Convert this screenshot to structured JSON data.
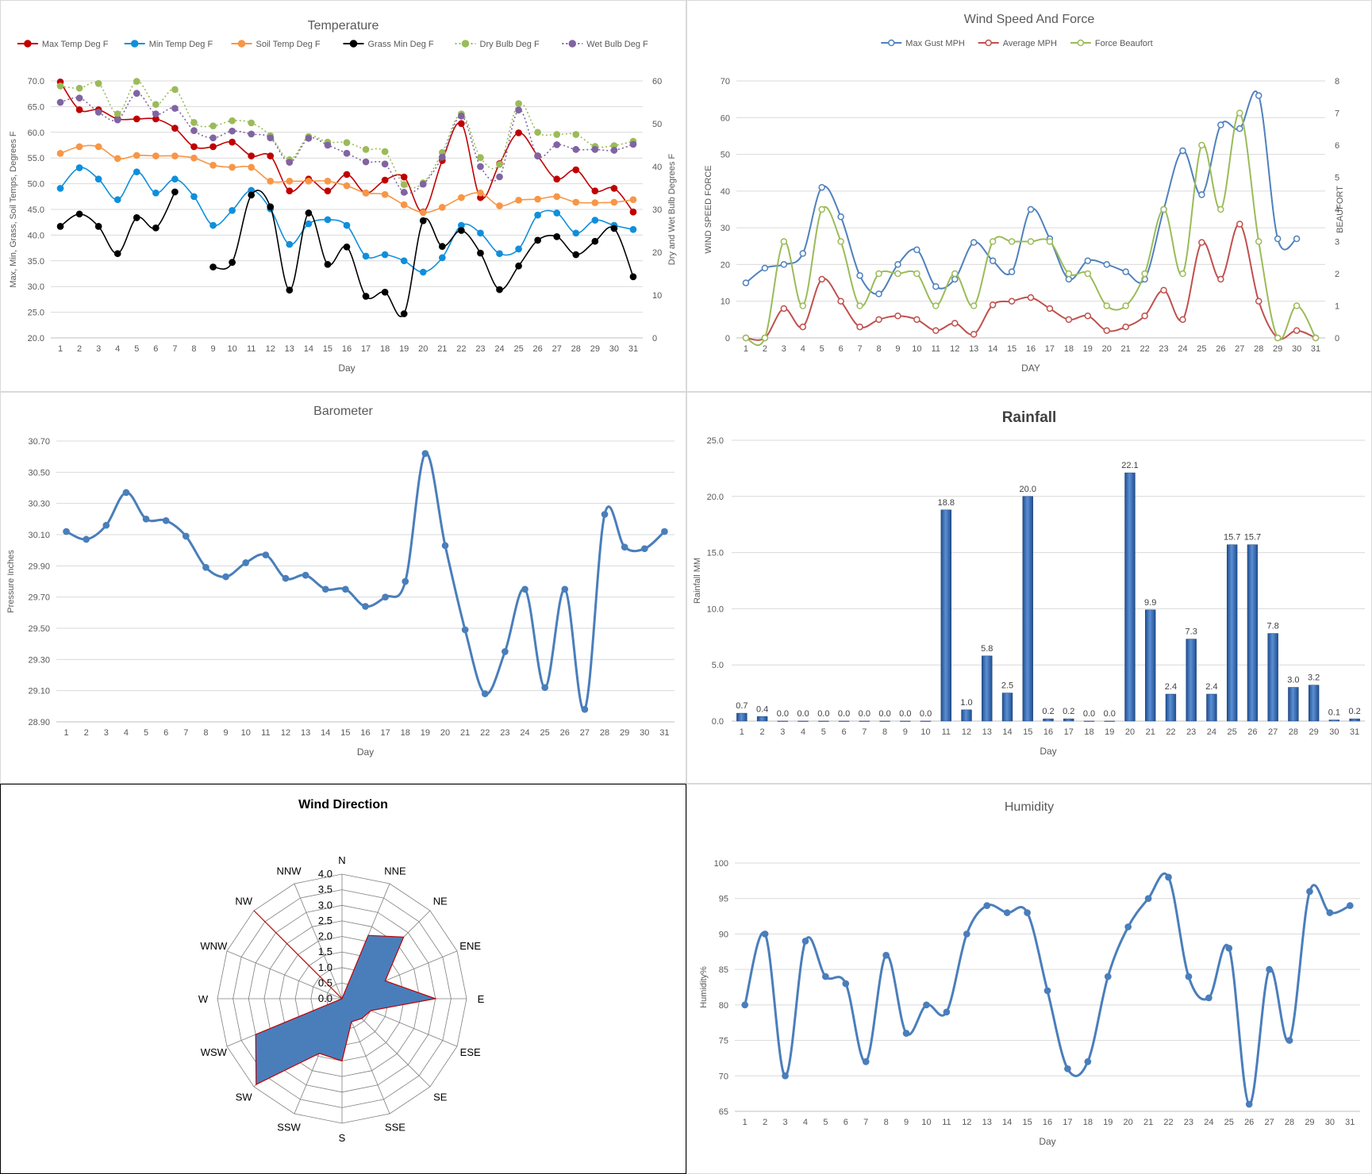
{
  "temperature": {
    "title": "Temperature",
    "xlabel": "Day",
    "ylabel_left": "Max, Min, Grass, Soil Temps, Degrees F",
    "ylabel_right": "Dry and Wet Bulb Degrees F",
    "legend": [
      {
        "name": "Max Temp Deg F",
        "color": "#c00000",
        "dash": false
      },
      {
        "name": "Min Temp Deg F",
        "color": "#0f8fdb",
        "dash": false
      },
      {
        "name": "Soil Temp Deg F",
        "color": "#f79646",
        "dash": false
      },
      {
        "name": "Grass Min Deg F",
        "color": "#000000",
        "dash": false
      },
      {
        "name": "Dry Bulb Deg F",
        "color": "#9bbb59",
        "dash": true
      },
      {
        "name": "Wet Bulb Deg F",
        "color": "#8064a2",
        "dash": true
      }
    ]
  },
  "wind": {
    "title": "Wind Speed And Force",
    "xlabel": "DAY",
    "ylabel_left": "WIND SPEED FORCE",
    "ylabel_right": "BEAUFORT",
    "legend": [
      {
        "name": "Max Gust MPH",
        "color": "#4f81bd"
      },
      {
        "name": "Average MPH",
        "color": "#c0504d"
      },
      {
        "name": "Force Beaufort",
        "color": "#9bbb59"
      }
    ]
  },
  "barometer": {
    "title": "Barometer",
    "xlabel": "Day",
    "ylabel": "Pressure Inches"
  },
  "rainfall": {
    "title": "Rainfall",
    "xlabel": "Day",
    "ylabel": "Rainfall MM"
  },
  "direction": {
    "title": "Wind Direction"
  },
  "humidity": {
    "title": "Humidity",
    "xlabel": "Day",
    "ylabel": "Humidity%"
  },
  "chart_data": [
    {
      "type": "line",
      "title": "Temperature",
      "xlabel": "Day",
      "ylabel": "Max, Min, Grass, Soil Temps, Degrees F",
      "y2label": "Dry and Wet Bulb Degrees F",
      "x": [
        1,
        2,
        3,
        4,
        5,
        6,
        7,
        8,
        9,
        10,
        11,
        12,
        13,
        14,
        15,
        16,
        17,
        18,
        19,
        20,
        21,
        22,
        23,
        24,
        25,
        26,
        27,
        28,
        29,
        30,
        31
      ],
      "ylim": [
        20,
        70
      ],
      "y2lim": [
        0,
        60
      ],
      "yticks": [
        "20.0",
        "25.0",
        "30.0",
        "35.0",
        "40.0",
        "45.0",
        "50.0",
        "55.0",
        "60.0",
        "65.0",
        "70.0"
      ],
      "y2ticks": [
        "0",
        "10",
        "20",
        "30",
        "40",
        "50",
        "60"
      ],
      "legend": "top",
      "series": [
        {
          "name": "Max Temp Deg F",
          "axis": "left",
          "values": [
            69.8,
            64.4,
            64.4,
            62.6,
            62.6,
            62.6,
            60.8,
            57.2,
            57.2,
            58.1,
            55.4,
            55.4,
            48.6,
            50.9,
            48.6,
            51.8,
            48.2,
            50.7,
            51.3,
            44.5,
            54.5,
            61.7,
            47.3,
            53.9,
            59.9,
            55.4,
            50.9,
            52.7,
            48.6,
            49.1,
            44.5
          ]
        },
        {
          "name": "Min Temp Deg F",
          "axis": "left",
          "values": [
            49.1,
            53.1,
            50.9,
            46.9,
            52.3,
            48.2,
            50.9,
            47.5,
            41.9,
            44.8,
            48.7,
            45.1,
            38.2,
            42.2,
            43.0,
            41.9,
            35.9,
            36.2,
            35.0,
            32.8,
            35.6,
            41.9,
            40.4,
            36.4,
            37.3,
            43.9,
            44.3,
            40.4,
            42.9,
            41.9,
            41.1
          ]
        },
        {
          "name": "Soil Temp Deg F",
          "axis": "left",
          "values": [
            55.9,
            57.2,
            57.2,
            54.9,
            55.5,
            55.4,
            55.4,
            55.0,
            53.6,
            53.2,
            53.2,
            50.5,
            50.5,
            50.5,
            50.5,
            49.6,
            48.2,
            47.9,
            45.9,
            44.4,
            45.4,
            47.3,
            48.2,
            45.7,
            46.8,
            47.0,
            47.5,
            46.4,
            46.3,
            46.4,
            46.9
          ]
        },
        {
          "name": "Grass Min Deg F",
          "axis": "left",
          "values": [
            41.7,
            44.1,
            41.7,
            36.4,
            43.4,
            41.4,
            48.4,
            null,
            33.8,
            34.7,
            47.8,
            45.5,
            29.3,
            44.3,
            34.3,
            37.7,
            28.1,
            28.9,
            24.7,
            42.8,
            37.8,
            40.9,
            36.5,
            29.4,
            34.0,
            39.0,
            39.7,
            36.2,
            38.8,
            41.3,
            31.9
          ]
        },
        {
          "name": "Dry Bulb Deg F",
          "axis": "right",
          "values": [
            58.8,
            58.3,
            59.4,
            52.3,
            59.9,
            54.5,
            58.0,
            50.3,
            49.5,
            50.7,
            50.2,
            47.2,
            41.6,
            47.0,
            45.7,
            45.6,
            44.0,
            43.5,
            35.8,
            36.2,
            43.3,
            52.3,
            42.1,
            40.5,
            54.7,
            48.0,
            47.5,
            47.5,
            44.7,
            44.9,
            45.9
          ]
        },
        {
          "name": "Wet Bulb Deg F",
          "axis": "right",
          "values": [
            55.0,
            56.0,
            52.7,
            50.9,
            57.1,
            52.3,
            53.6,
            48.4,
            46.7,
            48.3,
            47.6,
            46.7,
            41.0,
            46.6,
            45.0,
            43.1,
            41.1,
            40.6,
            34.0,
            35.9,
            42.2,
            51.8,
            40.0,
            37.6,
            53.2,
            42.5,
            45.1,
            44.0,
            44.0,
            43.8,
            45.2
          ]
        }
      ]
    },
    {
      "type": "line",
      "title": "Wind Speed And Force",
      "xlabel": "DAY",
      "ylabel": "WIND SPEED FORCE",
      "y2label": "BEAUFORT",
      "x": [
        1,
        2,
        3,
        4,
        5,
        6,
        7,
        8,
        9,
        10,
        11,
        12,
        13,
        14,
        15,
        16,
        17,
        18,
        19,
        20,
        21,
        22,
        23,
        24,
        25,
        26,
        27,
        28,
        29,
        30,
        31
      ],
      "ylim": [
        0,
        70
      ],
      "y2lim": [
        0,
        8
      ],
      "yticks": [
        "0",
        "10",
        "20",
        "30",
        "40",
        "50",
        "60",
        "70"
      ],
      "y2ticks": [
        "0",
        "1",
        "2",
        "3",
        "4",
        "5",
        "6",
        "7",
        "8"
      ],
      "legend": "top",
      "series": [
        {
          "name": "Max Gust MPH",
          "axis": "left",
          "values": [
            15,
            19,
            20,
            23,
            41,
            33,
            17,
            12,
            20,
            24,
            14,
            16,
            26,
            21,
            18,
            35,
            27,
            16,
            21,
            20,
            18,
            16,
            35,
            51,
            39,
            58,
            57,
            66,
            27,
            27,
            null
          ]
        },
        {
          "name": "Average MPH",
          "axis": "left",
          "values": [
            0,
            0,
            8,
            3,
            16,
            10,
            3,
            5,
            6,
            5,
            2,
            4,
            1,
            9,
            10,
            11,
            8,
            5,
            6,
            2,
            3,
            6,
            13,
            5,
            26,
            16,
            31,
            10,
            0,
            2,
            0
          ]
        },
        {
          "name": "Force Beaufort",
          "axis": "right",
          "values": [
            0,
            0,
            3,
            1,
            4,
            3,
            1,
            2,
            2,
            2,
            1,
            2,
            1,
            3,
            3,
            3,
            3,
            2,
            2,
            1,
            1,
            2,
            4,
            2,
            6,
            4,
            7,
            3,
            0,
            1,
            0
          ]
        }
      ]
    },
    {
      "type": "line",
      "title": "Barometer",
      "xlabel": "Day",
      "ylabel": "Pressure Inches",
      "x": [
        1,
        2,
        3,
        4,
        5,
        6,
        7,
        8,
        9,
        10,
        11,
        12,
        13,
        14,
        15,
        16,
        17,
        18,
        19,
        20,
        21,
        22,
        23,
        24,
        25,
        26,
        27,
        28,
        29,
        30,
        31
      ],
      "ylim": [
        28.9,
        30.7
      ],
      "yticks": [
        "28.90",
        "29.10",
        "29.30",
        "29.50",
        "29.70",
        "29.90",
        "30.10",
        "30.30",
        "30.50",
        "30.70"
      ],
      "series": [
        {
          "name": "",
          "values": [
            30.12,
            30.07,
            30.16,
            30.37,
            30.2,
            30.19,
            30.09,
            29.89,
            29.83,
            29.92,
            29.97,
            29.82,
            29.84,
            29.75,
            29.75,
            29.64,
            29.7,
            29.8,
            30.62,
            30.03,
            29.49,
            29.08,
            29.35,
            29.75,
            29.12,
            29.75,
            28.98,
            30.23,
            30.02,
            30.01,
            30.12
          ]
        }
      ]
    },
    {
      "type": "bar",
      "title": "Rainfall",
      "xlabel": "Day",
      "ylabel": "Rainfall MM",
      "categories": [
        "1",
        "2",
        "3",
        "4",
        "5",
        "6",
        "7",
        "8",
        "9",
        "10",
        "11",
        "12",
        "13",
        "14",
        "15",
        "16",
        "17",
        "18",
        "19",
        "20",
        "21",
        "22",
        "23",
        "24",
        "25",
        "26",
        "27",
        "28",
        "29",
        "30",
        "31"
      ],
      "values": [
        0.7,
        0.4,
        0.0,
        0.0,
        0.0,
        0.0,
        0.0,
        0.0,
        0.0,
        0.0,
        18.8,
        1.0,
        5.8,
        2.5,
        20.0,
        0.2,
        0.2,
        0.0,
        0.0,
        22.1,
        9.9,
        2.4,
        7.3,
        2.4,
        15.7,
        15.7,
        7.8,
        3.0,
        3.2,
        0.1,
        0.2
      ],
      "labels": [
        "0.7",
        "0.4",
        "0.0",
        "0.0",
        "0.0",
        "0.0",
        "0.0",
        "0.0",
        "0.0",
        "0.0",
        "18.8",
        "1.0",
        "5.8",
        "2.5",
        "20.0",
        "0.2",
        "0.2",
        "0.0",
        "0.0",
        "22.1",
        "9.9",
        "2.4",
        "7.3",
        "2.4",
        "15.7",
        "15.7",
        "7.8",
        "3.0",
        "3.2",
        "0.1",
        "0.2"
      ],
      "ylim": [
        0,
        25
      ],
      "yticks": [
        "0.0",
        "5.0",
        "10.0",
        "15.0",
        "20.0",
        "25.0"
      ]
    },
    {
      "type": "radar",
      "title": "Wind Direction",
      "categories": [
        "N",
        "NNE",
        "NE",
        "ENE",
        "E",
        "ESE",
        "SE",
        "SSE",
        "S",
        "SSW",
        "SW",
        "WSW",
        "W",
        "WNW",
        "NW",
        "NNW"
      ],
      "rlim": [
        0,
        4
      ],
      "rticks": [
        "0.0",
        "0.5",
        "1.0",
        "1.5",
        "2.0",
        "2.5",
        "3.0",
        "3.5",
        "4.0"
      ],
      "series": [
        {
          "name": "",
          "values": [
            0,
            2.2,
            2.8,
            1.5,
            3.0,
            1.0,
            0.9,
            0.8,
            2.0,
            1.9,
            3.9,
            3.0,
            0,
            0,
            0,
            0
          ]
        },
        {
          "name": "",
          "values": [
            0,
            0,
            0,
            0,
            0,
            0,
            0,
            0,
            0,
            0,
            0,
            0,
            0,
            0,
            4,
            0
          ]
        }
      ]
    },
    {
      "type": "line",
      "title": "Humidity",
      "xlabel": "Day",
      "ylabel": "Humidity%",
      "x": [
        1,
        2,
        3,
        4,
        5,
        6,
        7,
        8,
        9,
        10,
        11,
        12,
        13,
        14,
        15,
        16,
        17,
        18,
        19,
        20,
        21,
        22,
        23,
        24,
        25,
        26,
        27,
        28,
        29,
        30,
        31
      ],
      "ylim": [
        65,
        100
      ],
      "yticks": [
        "65",
        "70",
        "75",
        "80",
        "85",
        "90",
        "95",
        "100"
      ],
      "series": [
        {
          "name": "",
          "values": [
            80,
            90,
            70,
            89,
            84,
            83,
            72,
            87,
            76,
            80,
            79,
            90,
            94,
            93,
            93,
            82,
            71,
            72,
            84,
            91,
            95,
            98,
            84,
            81,
            88,
            66,
            85,
            75,
            96,
            93,
            94
          ]
        }
      ]
    }
  ]
}
